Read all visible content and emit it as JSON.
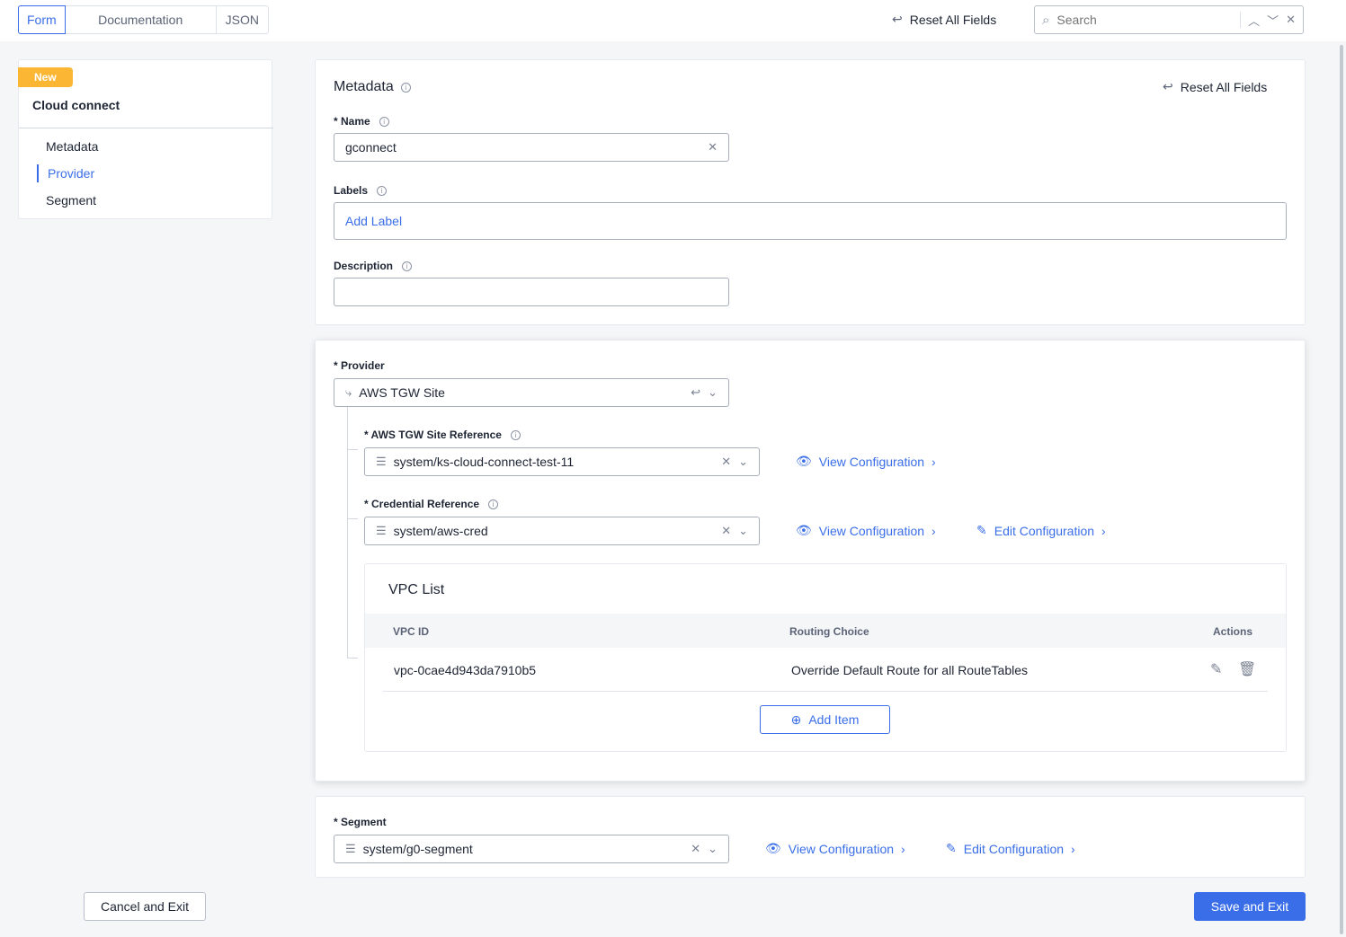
{
  "topbar": {
    "tabs": [
      {
        "label": "Form",
        "active": true
      },
      {
        "label": "Documentation"
      },
      {
        "label": "JSON"
      }
    ],
    "reset_label": "Reset All Fields",
    "search_placeholder": "Search"
  },
  "sidebar": {
    "badge": "New",
    "title": "Cloud connect",
    "items": [
      {
        "label": "Metadata"
      },
      {
        "label": "Provider",
        "active": true
      },
      {
        "label": "Segment"
      }
    ]
  },
  "metadata": {
    "title": "Metadata",
    "reset_label": "Reset All Fields",
    "name_label": "* Name",
    "name_value": "gconnect",
    "labels_label": "Labels",
    "add_label": "Add Label",
    "description_label": "Description",
    "description_value": ""
  },
  "provider": {
    "label": "* Provider",
    "value": "AWS TGW Site",
    "site_ref_label": "* AWS TGW Site Reference",
    "site_ref_value": "system/ks-cloud-connect-test-11",
    "cred_label": "* Credential Reference",
    "cred_value": "system/aws-cred",
    "view_config": "View Configuration",
    "edit_config": "Edit Configuration",
    "vpc": {
      "title": "VPC List",
      "columns": [
        "VPC ID",
        "Routing Choice",
        "Actions"
      ],
      "rows": [
        {
          "vpc_id": "vpc-0cae4d943da7910b5",
          "routing": "Override Default Route for all RouteTables"
        }
      ],
      "add_item": "Add Item"
    }
  },
  "segment": {
    "label": "* Segment",
    "value": "system/g0-segment",
    "view_config": "View Configuration",
    "edit_config": "Edit Configuration"
  },
  "footer": {
    "cancel": "Cancel and Exit",
    "save": "Save and Exit"
  },
  "colors": {
    "accent": "#3a6ee8",
    "badge": "#fbb634"
  }
}
